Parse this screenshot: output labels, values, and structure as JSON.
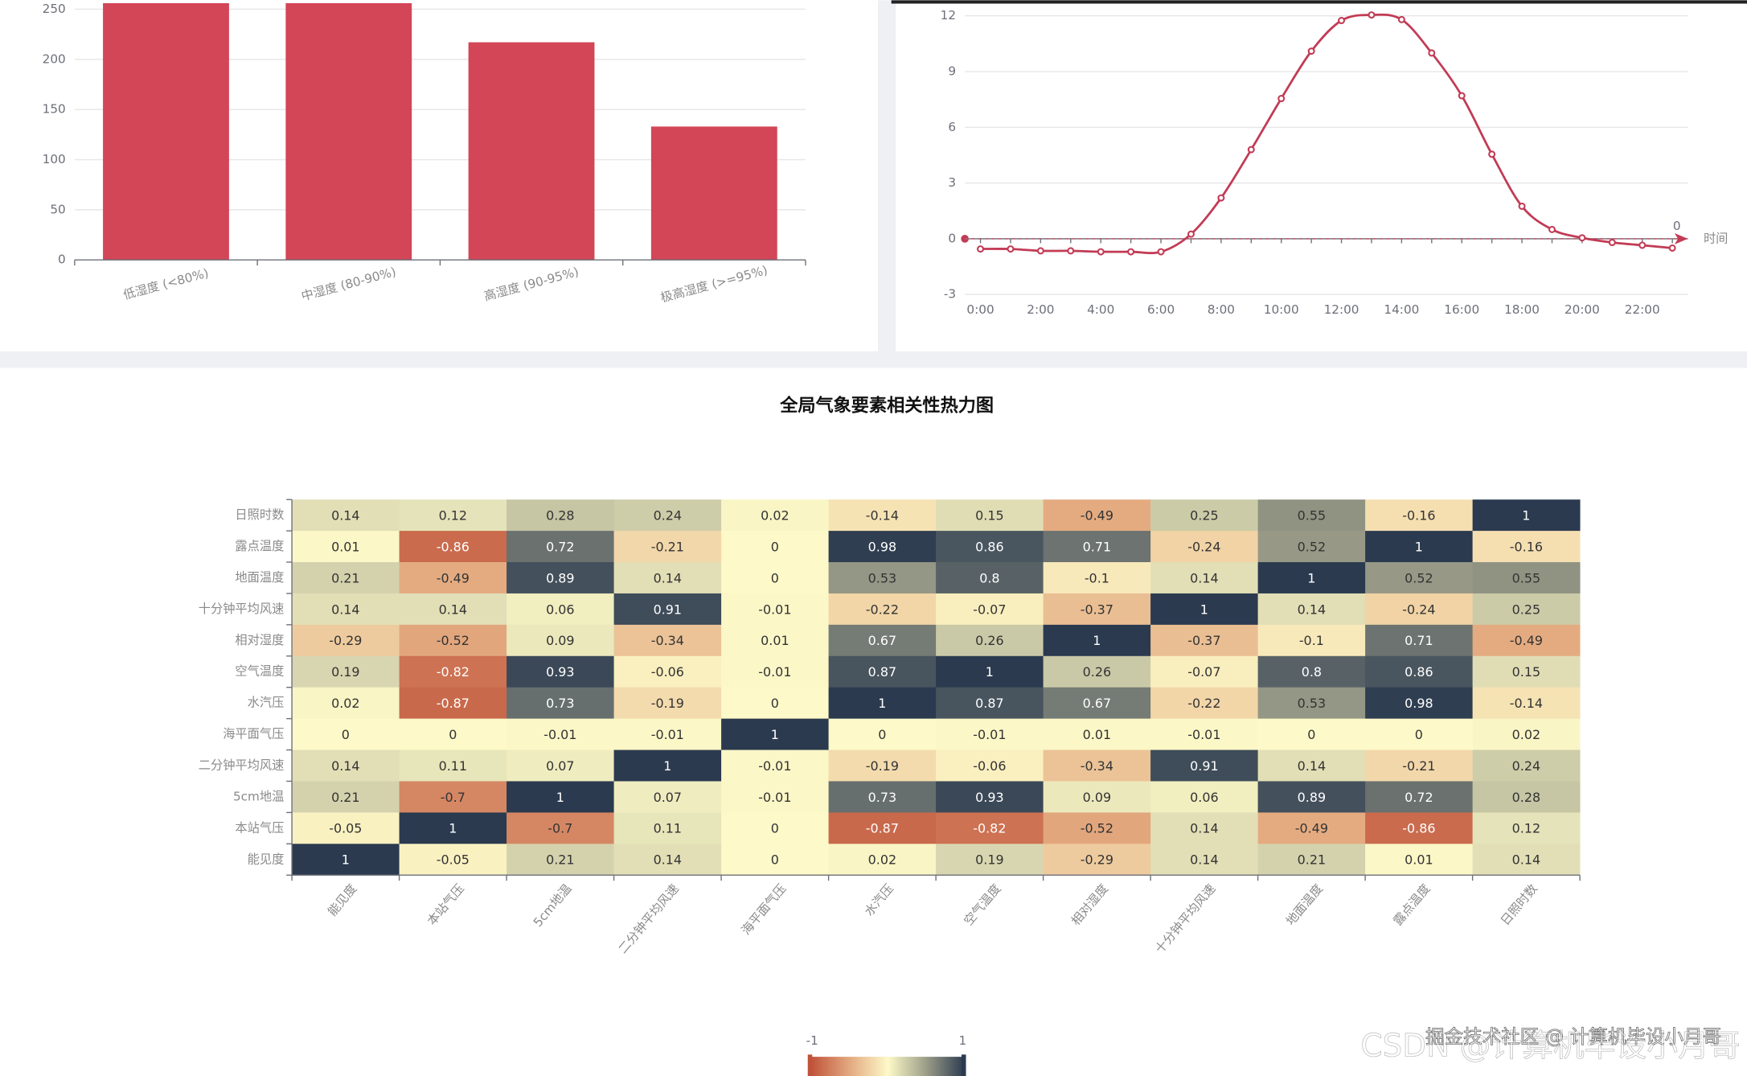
{
  "chart_data": [
    {
      "type": "bar",
      "categories": [
        "低湿度 (<80%)",
        "中湿度 (80-90%)",
        "高湿度 (90-95%)",
        "极高湿度 (>=95%)"
      ],
      "values": [
        256,
        256,
        217,
        133
      ],
      "color": "#d24657",
      "ylim": [
        0,
        250
      ],
      "yticks": [
        0,
        50,
        100,
        150,
        200,
        250
      ],
      "grid": true
    },
    {
      "type": "line",
      "x_label": "时间",
      "categories": [
        "0:00",
        null,
        "2:00",
        null,
        "4:00",
        null,
        "6:00",
        null,
        "8:00",
        null,
        "10:00",
        null,
        "12:00",
        null,
        "14:00",
        null,
        "16:00",
        null,
        "18:00",
        null,
        "20:00",
        null,
        "22:00",
        null
      ],
      "series": [
        {
          "color": "#c23b55",
          "values": [
            -0.55,
            -0.55,
            -0.65,
            -0.65,
            -0.7,
            -0.7,
            -0.7,
            0.25,
            2.2,
            4.8,
            7.55,
            10.1,
            11.75,
            12.05,
            11.8,
            10.0,
            7.7,
            4.55,
            1.75,
            0.5,
            0.05,
            -0.2,
            -0.35,
            -0.5
          ]
        }
      ],
      "ylim": [
        -3,
        12
      ],
      "yticks": [
        -3,
        0,
        3,
        6,
        9,
        12
      ],
      "grid": true,
      "mark_line": 0
    },
    {
      "type": "heatmap",
      "title": "全局气象要素相关性热力图",
      "x_categories": [
        "能见度",
        "本站气压",
        "5cm地温",
        "二分钟平均风速",
        "海平面气压",
        "水汽压",
        "空气温度",
        "相对湿度",
        "十分钟平均风速",
        "地面温度",
        "露点温度",
        "日照时数"
      ],
      "y_categories": [
        "日照时数",
        "露点温度",
        "地面温度",
        "十分钟平均风速",
        "相对湿度",
        "空气温度",
        "水汽压",
        "海平面气压",
        "二分钟平均风速",
        "5cm地温",
        "本站气压",
        "能见度"
      ],
      "values": [
        [
          0.14,
          0.12,
          0.28,
          0.24,
          0.02,
          -0.14,
          0.15,
          -0.49,
          0.25,
          0.55,
          -0.16,
          1
        ],
        [
          0.01,
          -0.86,
          0.72,
          -0.21,
          0,
          0.98,
          0.86,
          0.71,
          -0.24,
          0.52,
          1,
          -0.16
        ],
        [
          0.21,
          -0.49,
          0.89,
          0.14,
          0,
          0.53,
          0.8,
          -0.1,
          0.14,
          1,
          0.52,
          0.55
        ],
        [
          0.14,
          0.14,
          0.06,
          0.91,
          -0.01,
          -0.22,
          -0.07,
          -0.37,
          1,
          0.14,
          -0.24,
          0.25
        ],
        [
          -0.29,
          -0.52,
          0.09,
          -0.34,
          0.01,
          0.67,
          0.26,
          1,
          -0.37,
          -0.1,
          0.71,
          -0.49
        ],
        [
          0.19,
          -0.82,
          0.93,
          -0.06,
          -0.01,
          0.87,
          1,
          0.26,
          -0.07,
          0.8,
          0.86,
          0.15
        ],
        [
          0.02,
          -0.87,
          0.73,
          -0.19,
          0,
          1,
          0.87,
          0.67,
          -0.22,
          0.53,
          0.98,
          -0.14
        ],
        [
          0,
          0,
          -0.01,
          -0.01,
          1,
          0,
          -0.01,
          0.01,
          -0.01,
          0,
          0,
          0.02
        ],
        [
          0.14,
          0.11,
          0.07,
          1,
          -0.01,
          -0.19,
          -0.06,
          -0.34,
          0.91,
          0.14,
          -0.21,
          0.24
        ],
        [
          0.21,
          -0.7,
          1,
          0.07,
          -0.01,
          0.73,
          0.93,
          0.09,
          0.06,
          0.89,
          0.72,
          0.28
        ],
        [
          -0.05,
          1,
          -0.7,
          0.11,
          0,
          -0.87,
          -0.82,
          -0.52,
          0.14,
          -0.49,
          -0.86,
          0.12
        ],
        [
          1,
          -0.05,
          0.21,
          0.14,
          0,
          0.02,
          0.19,
          -0.29,
          0.14,
          0.21,
          0.01,
          0.14
        ]
      ],
      "visual_map": {
        "min": -1,
        "max": 1,
        "colors": [
          "#c0533a",
          "#e3a980",
          "#fdf9c8",
          "#9b9d88",
          "#2b3a4f"
        ]
      }
    }
  ],
  "watermarks": [
    "掘金技术社区 @ 计算机毕设小月哥",
    "CSDN @计算机毕设小月哥"
  ]
}
